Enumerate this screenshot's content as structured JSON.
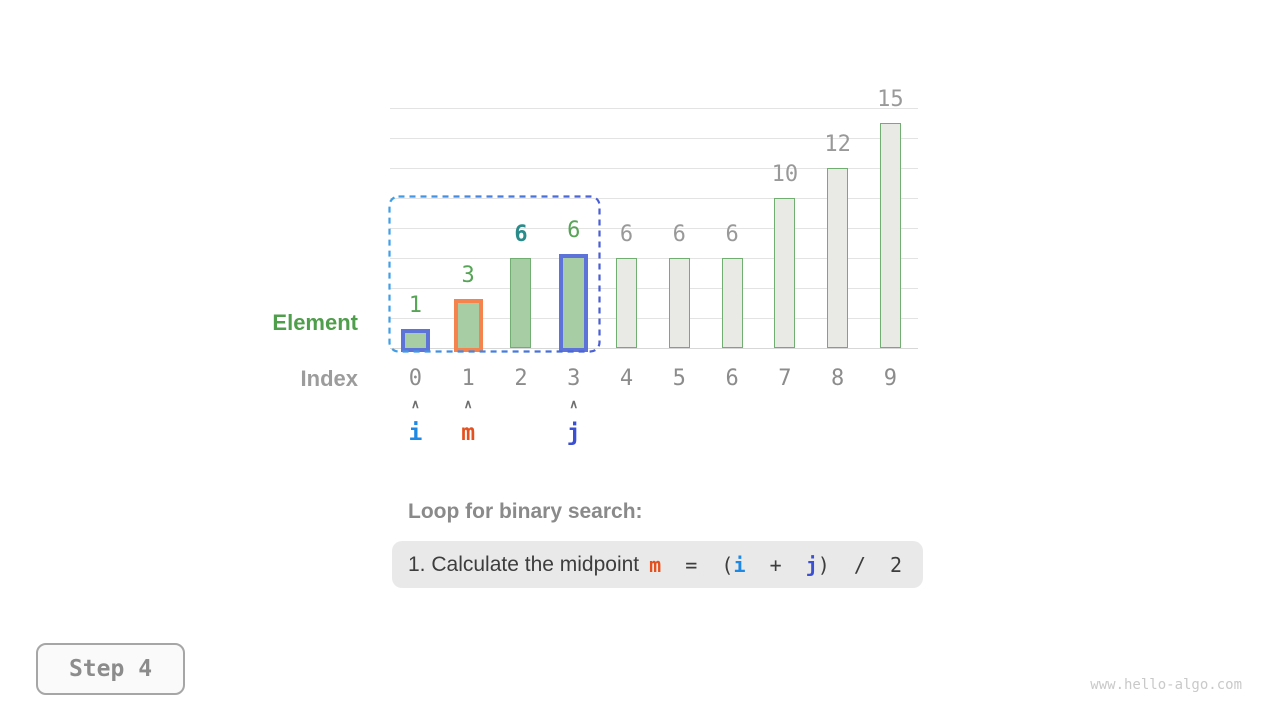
{
  "labels": {
    "element": "Element",
    "index": "Index"
  },
  "caption": {
    "title": "Loop for binary search:",
    "formula": {
      "prefix": "1. Calculate the midpoint",
      "m": "m",
      "seg1": "  =  (",
      "i": "i",
      "seg2": "  +  ",
      "j": "j",
      "seg3": ")  /  2"
    }
  },
  "step_badge": {
    "label": "Step 4"
  },
  "watermark": "www.hello-algo.com",
  "colors": {
    "bar_fill_green": "#a7cda4",
    "bar_fill_gray": "#e9eae6",
    "bar_stroke_green": "#72ae72",
    "border_blue": "#5e73d8",
    "border_orange": "#f5834e",
    "label_green": "#57a457",
    "label_teal": "#2a8b8b",
    "label_gray": "#999999",
    "index_gray": "#8c8c8c",
    "caret_gray": "#6e6e6e",
    "pointer_i": "#1e88e5",
    "pointer_m": "#e4511f",
    "pointer_j": "#3a4fd2",
    "range_gradient_start": "#3f9fe8",
    "range_gradient_end": "#4a5ed6",
    "grid": "#e3e3e3",
    "element_label": "#4f9e4b",
    "muted_text": "#8a8a8a",
    "formula_text": "#3d3d3d",
    "formula_bg": "#e9e9e9"
  },
  "chart_data": {
    "type": "bar",
    "title": "",
    "xlabel": "Index",
    "ylabel": "Element",
    "categories": [
      "0",
      "1",
      "2",
      "3",
      "4",
      "5",
      "6",
      "7",
      "8",
      "9"
    ],
    "values": [
      1,
      3,
      6,
      6,
      6,
      6,
      6,
      10,
      12,
      15
    ],
    "ylim": [
      0,
      16
    ],
    "gridline_step": 2,
    "legend": "none",
    "caret_glyph": "∧",
    "bars": [
      {
        "index": 0,
        "value": 1,
        "fill": "green",
        "border": "blue",
        "label_color": "green",
        "label_bold": false
      },
      {
        "index": 1,
        "value": 3,
        "fill": "green",
        "border": "orange",
        "label_color": "green",
        "label_bold": false
      },
      {
        "index": 2,
        "value": 6,
        "fill": "green",
        "border": "none",
        "label_color": "teal",
        "label_bold": true
      },
      {
        "index": 3,
        "value": 6,
        "fill": "green",
        "border": "blue",
        "label_color": "green",
        "label_bold": false
      },
      {
        "index": 4,
        "value": 6,
        "fill": "gray",
        "border": "none",
        "label_color": "gray",
        "label_bold": false
      },
      {
        "index": 5,
        "value": 6,
        "fill": "gray",
        "border": "none",
        "label_color": "gray",
        "label_bold": false
      },
      {
        "index": 6,
        "value": 6,
        "fill": "gray",
        "border": "none",
        "label_color": "gray",
        "label_bold": false
      },
      {
        "index": 7,
        "value": 10,
        "fill": "gray",
        "border": "none",
        "label_color": "gray",
        "label_bold": false
      },
      {
        "index": 8,
        "value": 12,
        "fill": "gray",
        "border": "none",
        "label_color": "gray",
        "label_bold": false
      },
      {
        "index": 9,
        "value": 15,
        "fill": "gray",
        "border": "none",
        "label_color": "gray",
        "label_bold": false
      }
    ],
    "pointers": [
      {
        "index": 0,
        "label": "i",
        "color": "#1e88e5"
      },
      {
        "index": 1,
        "label": "m",
        "color": "#e4511f"
      },
      {
        "index": 3,
        "label": "j",
        "color": "#3a4fd2"
      }
    ],
    "search_range": {
      "from": 0,
      "to": 3
    }
  }
}
